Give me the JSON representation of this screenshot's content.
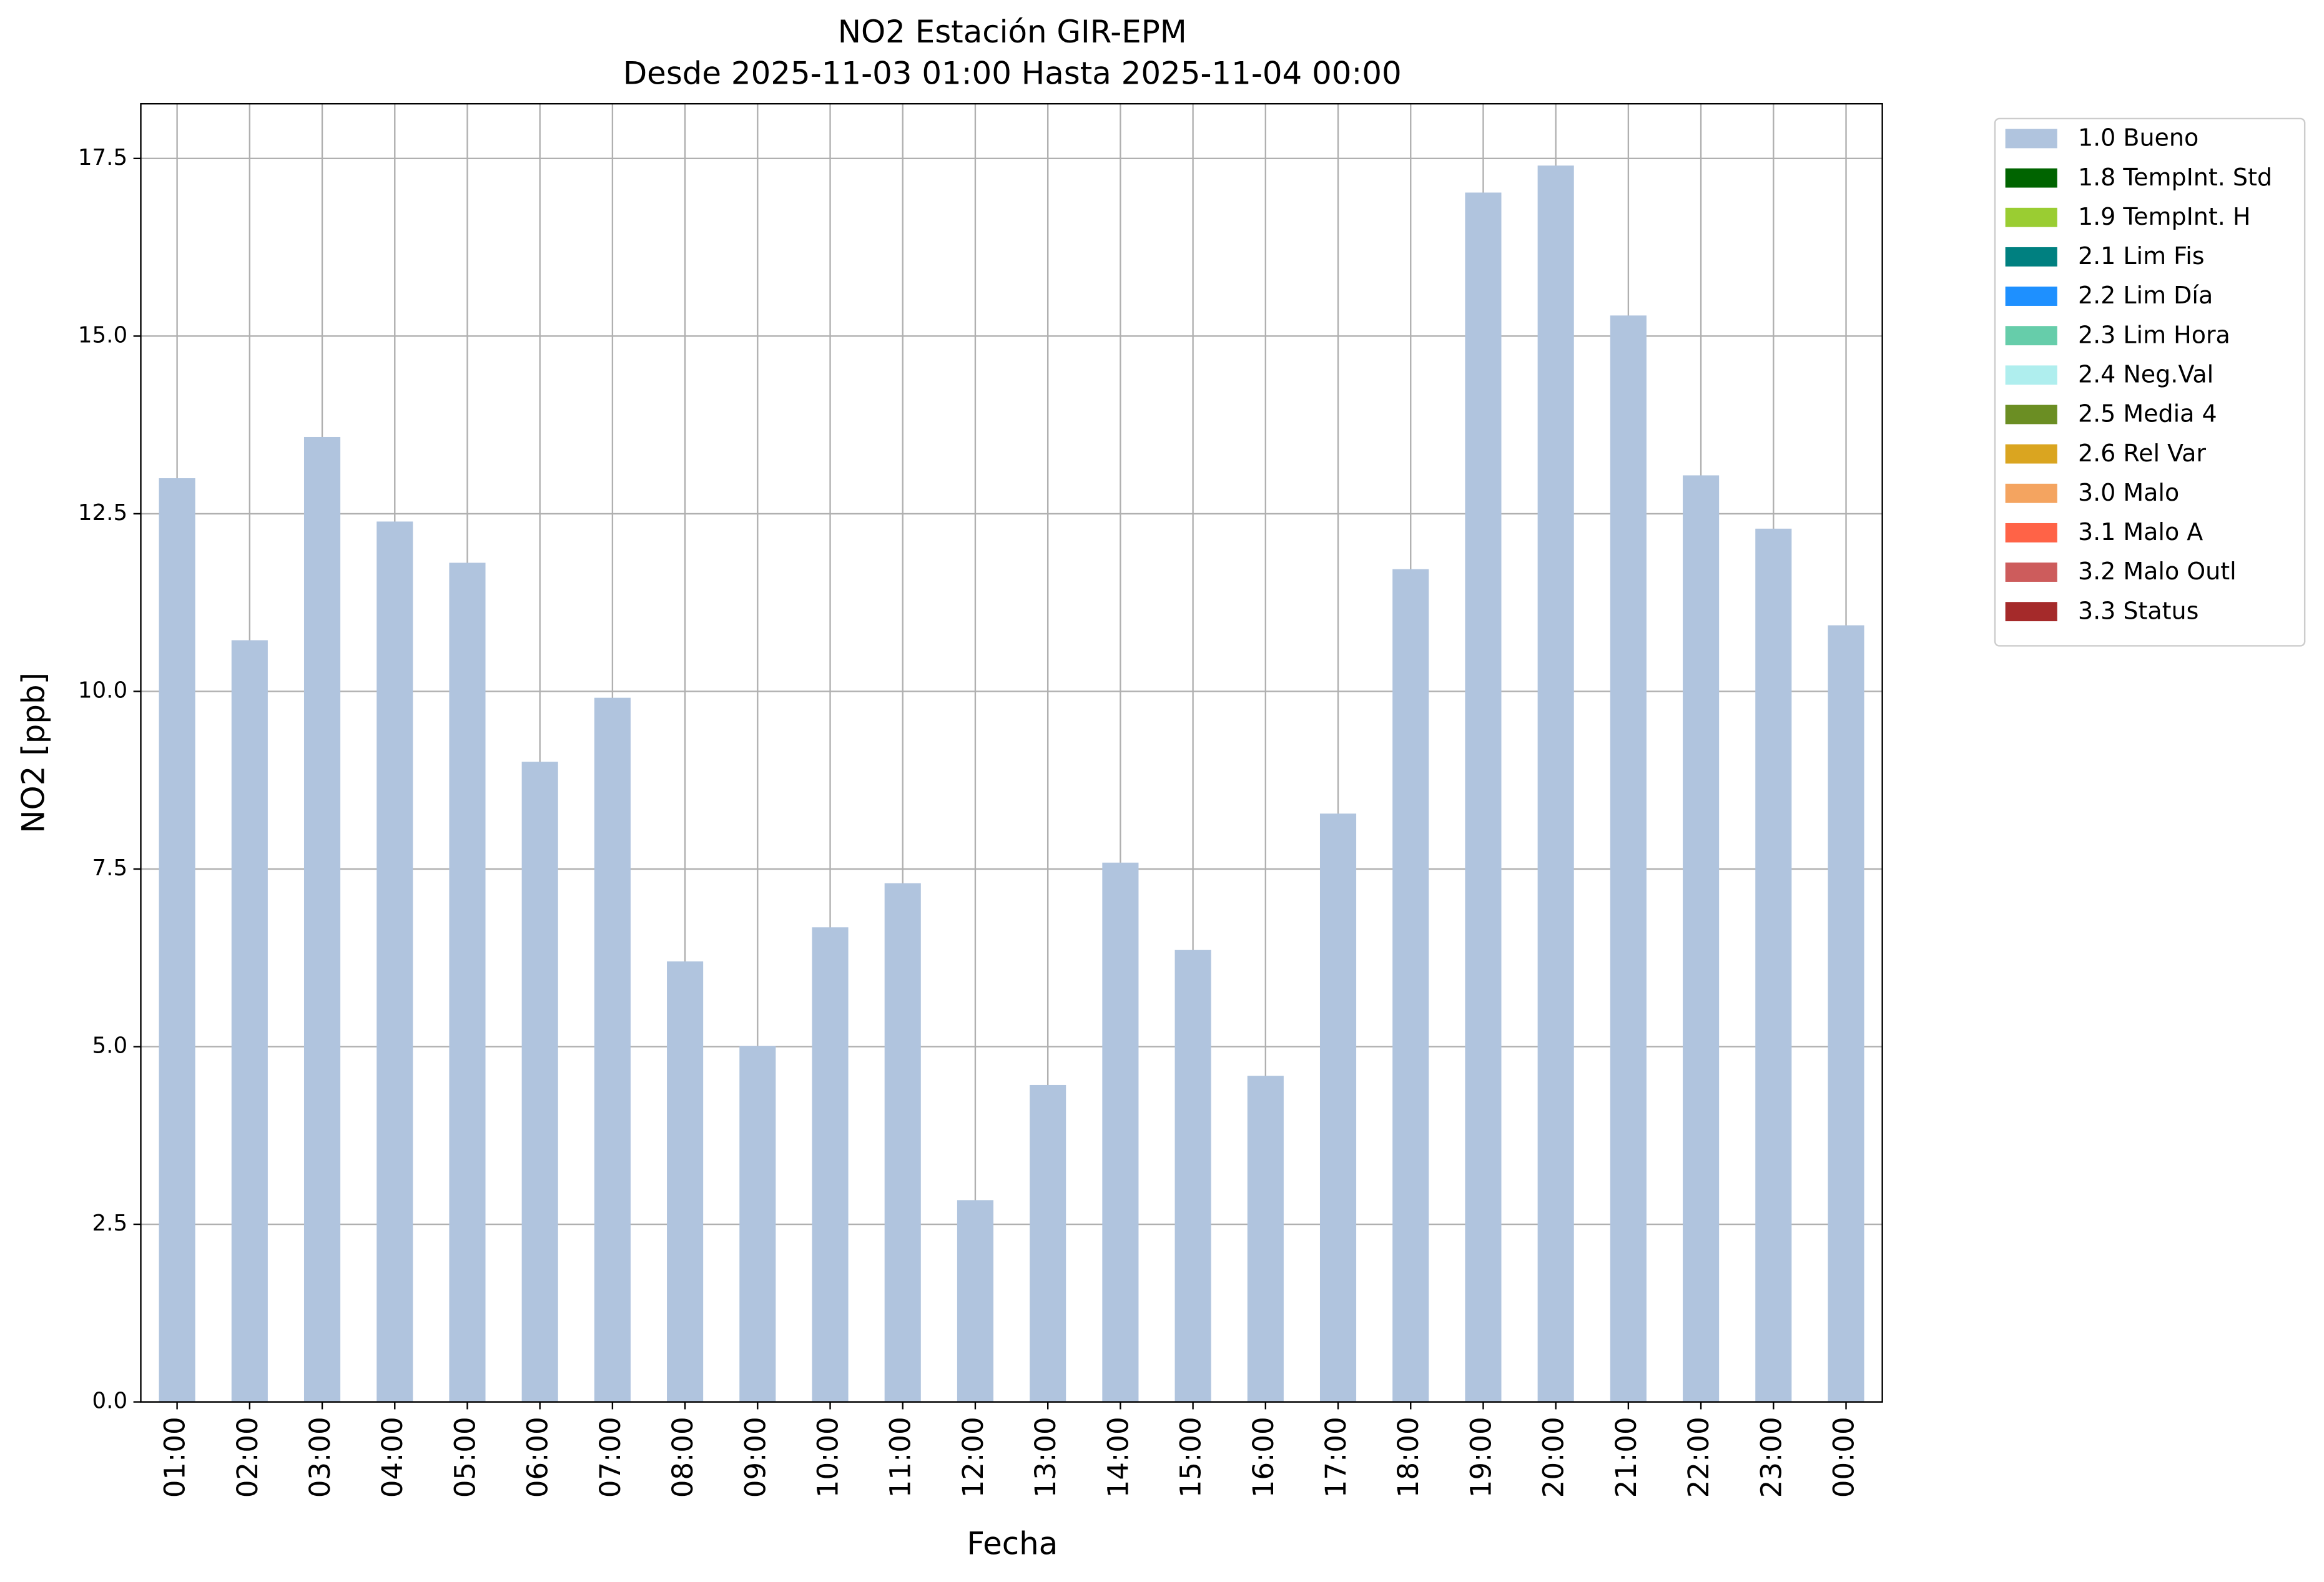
{
  "chart_data": {
    "type": "bar",
    "title": "NO2 Estación GIR-EPM",
    "subtitle": "Desde 2025-11-03 01:00 Hasta 2025-11-04 00:00",
    "x_label": "Fecha",
    "y_label": "NO2 [ppb]",
    "categories": [
      "01:00",
      "02:00",
      "03:00",
      "04:00",
      "05:00",
      "06:00",
      "07:00",
      "08:00",
      "09:00",
      "10:00",
      "11:00",
      "12:00",
      "13:00",
      "14:00",
      "15:00",
      "16:00",
      "17:00",
      "18:00",
      "19:00",
      "20:00",
      "21:00",
      "22:00",
      "23:00",
      "00:00"
    ],
    "series": [
      {
        "name": "1.0 Bueno",
        "color": "#b0c4de",
        "values": [
          13.0,
          10.72,
          13.58,
          12.39,
          11.81,
          9.01,
          9.91,
          6.2,
          5.01,
          6.68,
          7.3,
          2.84,
          4.46,
          7.59,
          6.36,
          4.59,
          8.28,
          11.72,
          17.02,
          17.4,
          15.29,
          13.04,
          12.29,
          10.93
        ]
      },
      {
        "name": "1.8 TempInt. Std",
        "color": "#006400"
      },
      {
        "name": "1.9 TempInt. H",
        "color": "#9acd32"
      },
      {
        "name": "2.1 Lim Fis",
        "color": "#008080"
      },
      {
        "name": "2.2 Lim Día",
        "color": "#1e90ff"
      },
      {
        "name": "2.3 Lim Hora",
        "color": "#66cdaa"
      },
      {
        "name": "2.4 Neg.Val",
        "color": "#afeeee"
      },
      {
        "name": "2.5 Media 4",
        "color": "#6b8e23"
      },
      {
        "name": "2.6 Rel Var",
        "color": "#daa520"
      },
      {
        "name": "3.0 Malo",
        "color": "#f4a460"
      },
      {
        "name": "3.1 Malo A",
        "color": "#ff6347"
      },
      {
        "name": "3.2 Malo Outl",
        "color": "#cd5c5c"
      },
      {
        "name": "3.3 Status",
        "color": "#a52a2a"
      }
    ],
    "ylim": [
      0,
      18.27
    ],
    "yticks": [
      {
        "value": 0,
        "label": "0.0"
      },
      {
        "value": 2.5,
        "label": "2.5"
      },
      {
        "value": 5,
        "label": "5.0"
      },
      {
        "value": 7.5,
        "label": "7.5"
      },
      {
        "value": 10,
        "label": "10.0"
      },
      {
        "value": 12.5,
        "label": "12.5"
      },
      {
        "value": 15,
        "label": "15.0"
      },
      {
        "value": 17.5,
        "label": "17.5"
      }
    ],
    "grid": true,
    "legend": "outside-right"
  }
}
